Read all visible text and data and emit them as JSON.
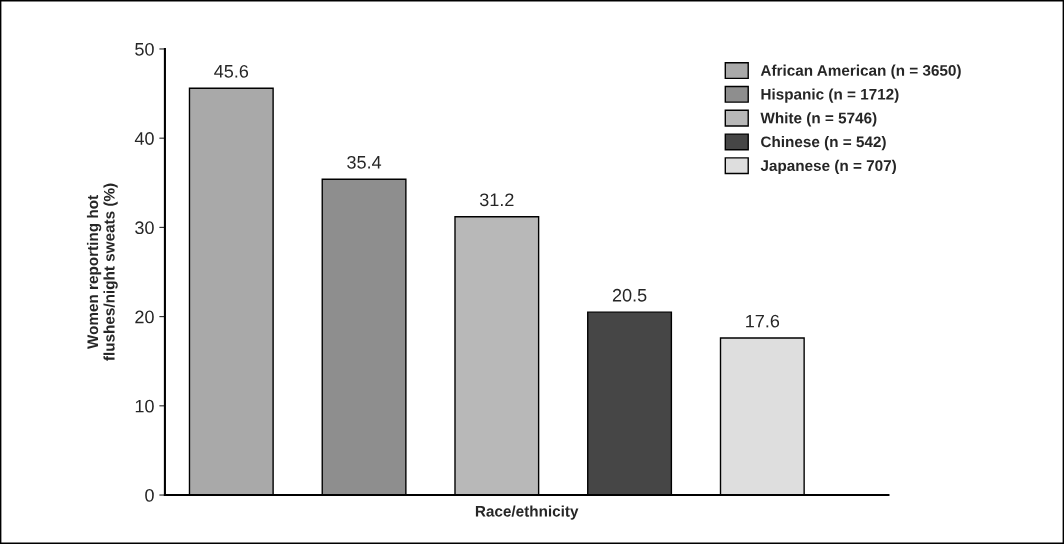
{
  "chart_data": {
    "type": "bar",
    "xlabel": "Race/ethnicity",
    "ylabel": "Women reporting hot\nflushes/night sweats (%)",
    "categories": [
      null,
      null,
      null,
      null,
      null
    ],
    "series": [
      {
        "name": "African American (n = 3650)",
        "color": "#a9a9a9",
        "values": [
          45.6,
          null,
          null,
          null,
          null
        ]
      },
      {
        "name": "Hispanic (n = 1712)",
        "color": "#8e8e8e",
        "values": [
          null,
          35.4,
          null,
          null,
          null
        ]
      },
      {
        "name": "White (n = 5746)",
        "color": "#b8b8b8",
        "values": [
          null,
          null,
          31.2,
          null,
          null
        ]
      },
      {
        "name": "Chinese (n = 542)",
        "color": "#464646",
        "values": [
          null,
          null,
          null,
          20.5,
          null
        ]
      },
      {
        "name": "Japanese (n = 707)",
        "color": "#dedede",
        "values": [
          null,
          null,
          null,
          null,
          17.6
        ]
      }
    ],
    "ylim": [
      0,
      50
    ],
    "yticks": [
      0,
      10,
      20,
      30,
      40,
      50
    ],
    "data_labels": true,
    "legend": "top right",
    "grid": false
  }
}
